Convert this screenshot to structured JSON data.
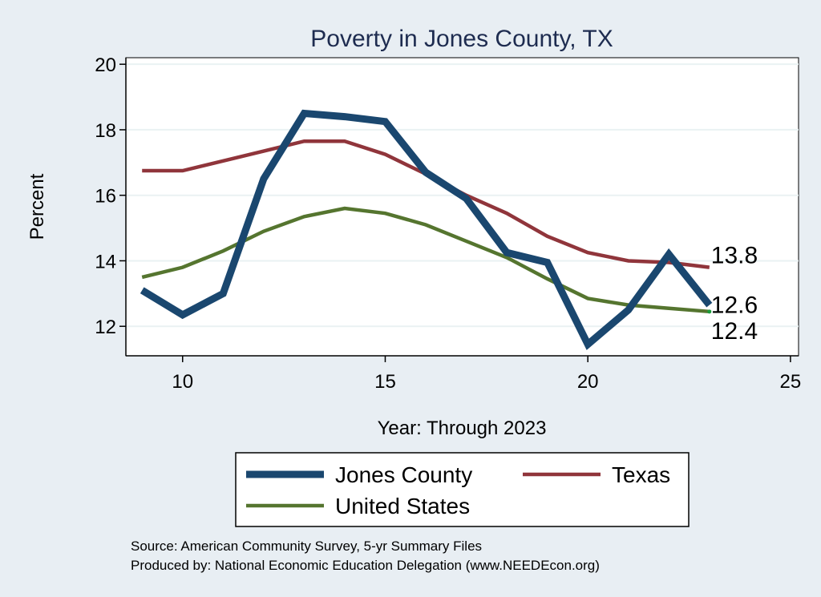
{
  "chart_data": {
    "type": "line",
    "title": "Poverty in Jones County, TX",
    "xlabel": "Year: Through 2023",
    "ylabel": "Percent",
    "xlim": [
      8.6,
      25.2
    ],
    "ylim": [
      11.1,
      20.2
    ],
    "xticks": [
      10,
      15,
      20,
      25
    ],
    "yticks": [
      12,
      14,
      16,
      18,
      20
    ],
    "grid": true,
    "x": [
      9,
      10,
      11,
      12,
      13,
      14,
      15,
      16,
      17,
      18,
      19,
      20,
      21,
      22,
      23
    ],
    "series": [
      {
        "name": "Jones County",
        "color": "#1a476f",
        "values": [
          13.1,
          12.35,
          13.0,
          16.5,
          18.5,
          18.4,
          18.25,
          16.7,
          15.9,
          14.25,
          13.95,
          11.45,
          12.5,
          14.2,
          12.65
        ],
        "end_label": "12.6"
      },
      {
        "name": "Texas",
        "color": "#90353b",
        "values": [
          16.75,
          16.75,
          17.05,
          17.35,
          17.65,
          17.65,
          17.25,
          16.65,
          16.0,
          15.45,
          14.75,
          14.25,
          14.0,
          13.95,
          13.8
        ],
        "end_label": "13.8"
      },
      {
        "name": "United States",
        "color": "#55752f",
        "values": [
          13.5,
          13.8,
          14.3,
          14.9,
          15.35,
          15.6,
          15.45,
          15.1,
          14.6,
          14.1,
          13.45,
          12.85,
          12.65,
          12.55,
          12.45
        ],
        "end_label": "12.4"
      }
    ]
  },
  "source_line1": "Source: American Community Survey, 5-yr Summary Files",
  "source_line2": "Produced by: National Economic Education Delegation (www.NEEDEcon.org)"
}
